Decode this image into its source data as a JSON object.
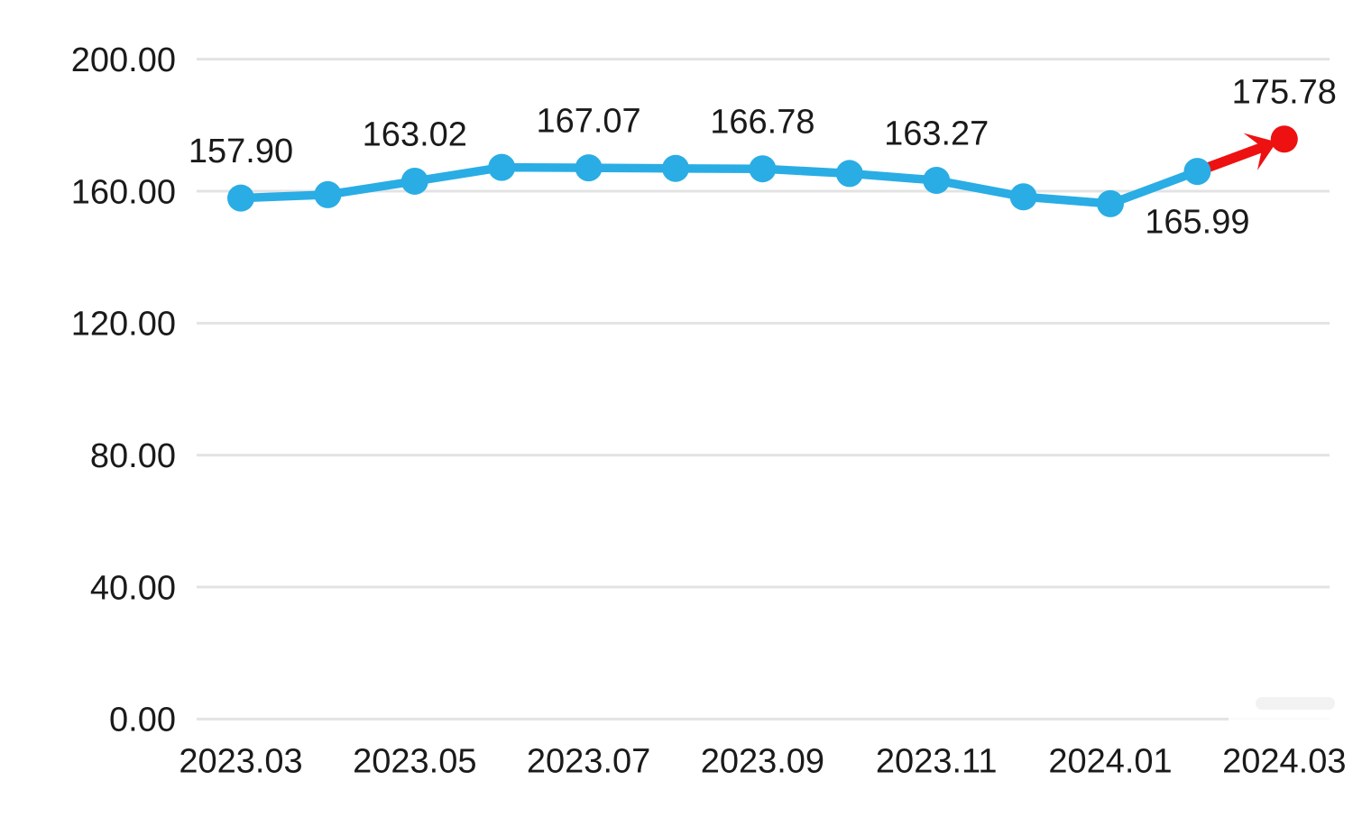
{
  "chart_data": {
    "type": "line",
    "title": "",
    "xlabel": "",
    "ylabel": "",
    "ylim": [
      0,
      200
    ],
    "y_tick_step": 40,
    "grid": true,
    "legend": false,
    "y_ticks": [
      "200.00",
      "160.00",
      "120.00",
      "80.00",
      "40.00",
      "0.00"
    ],
    "x_ticks": [
      "2023.03",
      "2023.05",
      "2023.07",
      "2023.09",
      "2023.11",
      "2024.01",
      "2024.03"
    ],
    "points": [
      {
        "x": "2023.03",
        "y": 157.9,
        "label": "157.90",
        "label_pos": "above"
      },
      {
        "x": "2023.04",
        "y": 158.95,
        "label": "",
        "label_pos": ""
      },
      {
        "x": "2023.05",
        "y": 163.02,
        "label": "163.02",
        "label_pos": "above"
      },
      {
        "x": "2023.06",
        "y": 167.2,
        "label": "",
        "label_pos": ""
      },
      {
        "x": "2023.07",
        "y": 167.07,
        "label": "167.07",
        "label_pos": "above"
      },
      {
        "x": "2023.08",
        "y": 166.9,
        "label": "",
        "label_pos": ""
      },
      {
        "x": "2023.09",
        "y": 166.78,
        "label": "166.78",
        "label_pos": "above"
      },
      {
        "x": "2023.10",
        "y": 165.35,
        "label": "",
        "label_pos": ""
      },
      {
        "x": "2023.11",
        "y": 163.27,
        "label": "163.27",
        "label_pos": "above"
      },
      {
        "x": "2023.12",
        "y": 158.3,
        "label": "",
        "label_pos": ""
      },
      {
        "x": "2024.01",
        "y": 156.2,
        "label": "",
        "label_pos": ""
      },
      {
        "x": "2024.02",
        "y": 165.99,
        "label": "165.99",
        "label_pos": "below"
      },
      {
        "x": "2024.03",
        "y": 175.78,
        "label": "175.78",
        "label_pos": "above"
      }
    ],
    "highlight": {
      "point": "2024.03",
      "style": "red-arrow",
      "color": "#ed1111"
    },
    "colors": {
      "line": "#29ade4",
      "highlight": "#ed1111",
      "grid": "#e3e3e3",
      "text": "#1a1a1a",
      "background": "#ffffff"
    }
  }
}
